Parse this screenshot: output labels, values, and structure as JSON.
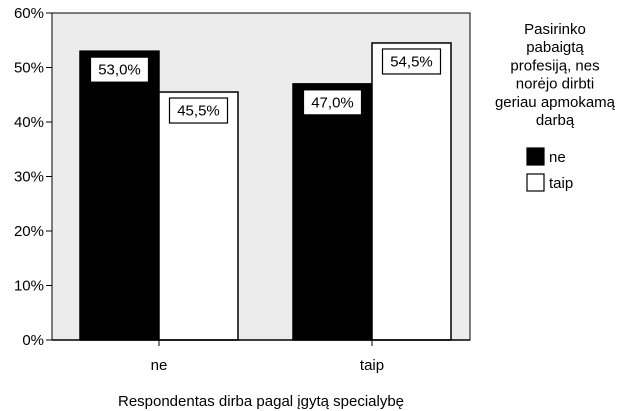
{
  "chart_data": {
    "type": "bar",
    "categories": [
      "ne",
      "taip"
    ],
    "series": [
      {
        "name": "ne",
        "values": [
          53.0,
          47.0
        ],
        "labels": [
          "53,0%",
          "47,0%"
        ],
        "color": "#000000"
      },
      {
        "name": "taip",
        "values": [
          45.5,
          54.5
        ],
        "labels": [
          "45,5%",
          "54,5%"
        ],
        "color": "#ffffff"
      }
    ],
    "xlabel": "Respondentas dirba pagal įgytą specialybę",
    "ylabel": "",
    "ylim": [
      0,
      60
    ],
    "yticks": [
      0,
      10,
      20,
      30,
      40,
      50,
      60
    ],
    "ytick_labels": [
      "0%",
      "10%",
      "20%",
      "30%",
      "40%",
      "50%",
      "60%"
    ],
    "plot_background": "#ececec",
    "grid": false,
    "legend": {
      "position": "right",
      "title_lines": [
        "Pasirinko",
        "pabaigtą",
        "profesiją, nes",
        "norėjo dirbti",
        "geriau apmokamą",
        "darbą"
      ]
    }
  }
}
